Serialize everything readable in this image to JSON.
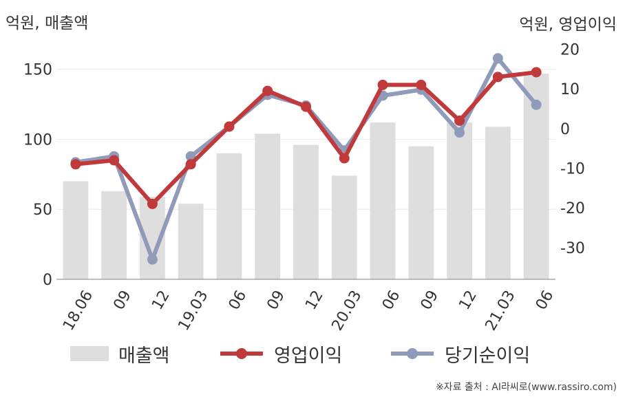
{
  "chart_data": {
    "type": "bar",
    "left_axis_title": "억원, 매출액",
    "right_axis_title": "억원, 영업이익",
    "categories": [
      "18.06",
      "09",
      "12",
      "19.03",
      "06",
      "09",
      "12",
      "20.03",
      "06",
      "09",
      "12",
      "21.03",
      "06"
    ],
    "left_ticks": [
      "0",
      "50",
      "100",
      "150"
    ],
    "right_ticks": [
      "20",
      "10",
      "0",
      "-10",
      "-20",
      "-30"
    ],
    "ylim_left": [
      0,
      170
    ],
    "ylim_right": [
      -38,
      22
    ],
    "grid": true,
    "legend_position": "bottom",
    "series": [
      {
        "name": "매출액",
        "type": "bar",
        "axis": "left",
        "color": "#dedede",
        "values": [
          70,
          63,
          59,
          54,
          90,
          104,
          96,
          74,
          112,
          95,
          112,
          109,
          147
        ]
      },
      {
        "name": "영업이익",
        "type": "line",
        "axis": "right",
        "color": "#c0393b",
        "values": [
          -9,
          -8,
          -19,
          -9,
          0.5,
          9.5,
          5.5,
          -7.5,
          11,
          11,
          2,
          13,
          14.2
        ]
      },
      {
        "name": "당기순이익",
        "type": "line",
        "axis": "right",
        "color": "#8f9bb8",
        "values": [
          -8.5,
          -7,
          -33,
          -7,
          0.5,
          8.5,
          5.8,
          -5.5,
          8.3,
          9.8,
          -1,
          17.7,
          6
        ]
      }
    ]
  },
  "legend": {
    "sales": "매출액",
    "operating": "영업이익",
    "net": "당기순이익"
  },
  "source": "※자료 출처 : AI라씨로(www.rassiro.com)"
}
